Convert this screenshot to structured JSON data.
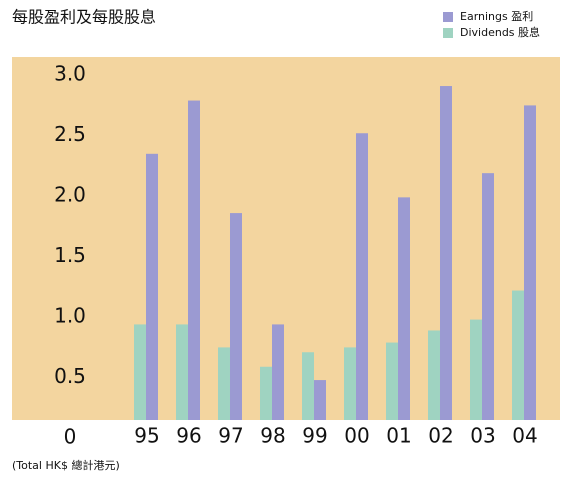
{
  "chart_data": {
    "type": "bar",
    "title": "每股盈利及每股股息",
    "footnote": "(Total HK$ 總計港元)",
    "categories": [
      "95",
      "96",
      "97",
      "98",
      "99",
      "00",
      "01",
      "02",
      "03",
      "04"
    ],
    "series": [
      {
        "name": "Dividends 股息",
        "color": "#9fd3c1",
        "values": [
          0.79,
          0.79,
          0.6,
          0.44,
          0.56,
          0.6,
          0.64,
          0.74,
          0.83,
          1.07
        ]
      },
      {
        "name": "Earnings 盈利",
        "color": "#9b9ad2",
        "values": [
          2.2,
          2.64,
          1.71,
          0.79,
          0.33,
          2.37,
          1.84,
          2.76,
          2.04,
          2.6
        ]
      }
    ],
    "ylim": [
      0,
      3.0
    ],
    "yticks": [
      0,
      0.5,
      {
        "value": 1,
        "label": "1.0"
      },
      1.5,
      {
        "value": 2,
        "label": "2.0"
      },
      2.5,
      {
        "value": 3,
        "label": "3.0"
      }
    ],
    "legend": "top-right",
    "background": "#f3d59f"
  }
}
